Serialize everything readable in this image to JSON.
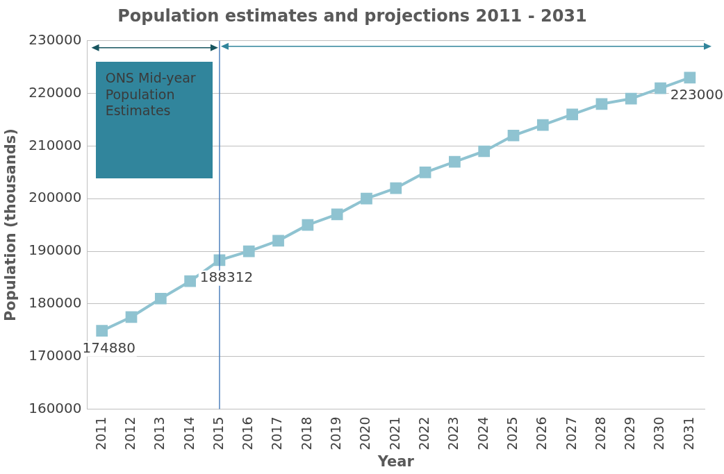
{
  "chart_data": {
    "type": "line",
    "title": "Population estimates and projections 2011 - 2031",
    "xlabel": "Year",
    "ylabel": "Population (thousands)",
    "categories": [
      "2011",
      "2012",
      "2013",
      "2014",
      "2015",
      "2016",
      "2017",
      "2018",
      "2019",
      "2020",
      "2021",
      "2022",
      "2023",
      "2024",
      "2025",
      "2026",
      "2027",
      "2028",
      "2029",
      "2030",
      "2031"
    ],
    "series": [
      {
        "color": "#8fc3d1",
        "values": [
          174880,
          177500,
          181000,
          184300,
          188312,
          190000,
          192000,
          195000,
          197000,
          200000,
          202000,
          205000,
          207000,
          209000,
          212000,
          214000,
          216000,
          218000,
          219000,
          221000,
          223000
        ],
        "value_labels": [
          "174880",
          null,
          null,
          null,
          "188312",
          null,
          null,
          null,
          null,
          null,
          null,
          null,
          null,
          null,
          null,
          null,
          null,
          null,
          null,
          null,
          "223000"
        ]
      }
    ],
    "ylim": [
      160000,
      230000
    ],
    "yticks": [
      160000,
      170000,
      180000,
      190000,
      200000,
      210000,
      220000,
      230000
    ],
    "grid": "y",
    "legend": false,
    "marker": "square",
    "line_style": "solid",
    "ref_lines": [
      {
        "axis": "x",
        "value": "2015",
        "color": "#4f81bd"
      }
    ],
    "annotations": [
      "ONS Mid-year Population Estimates"
    ]
  }
}
